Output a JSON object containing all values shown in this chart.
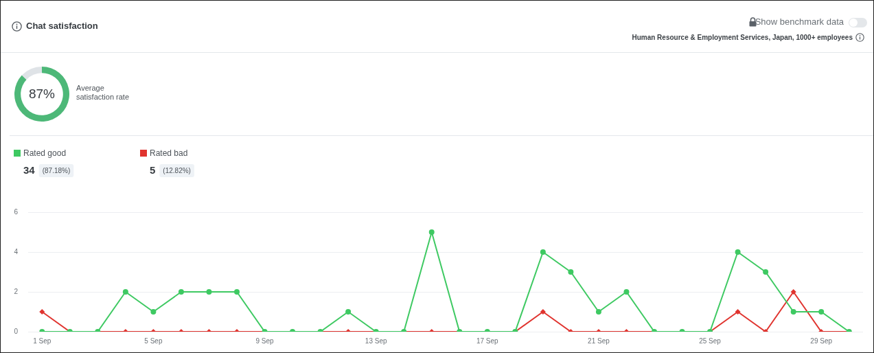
{
  "chart_data": [
    {
      "type": "donut",
      "title": "Chat satisfaction",
      "categories": [
        null,
        null
      ],
      "values": [
        87,
        13
      ],
      "colors": [
        "#4db878",
        "#dfe3e7"
      ],
      "value_labels": [
        "87%",
        null
      ],
      "annotations": [
        "Average satisfaction rate",
        "Show benchmark data",
        "Human Resource & Employment Services, Japan, 1000+ employees"
      ]
    },
    {
      "type": "line",
      "categories": [
        "1 Sep",
        null,
        null,
        null,
        "5 Sep",
        null,
        null,
        null,
        "9 Sep",
        null,
        null,
        null,
        "13 Sep",
        null,
        null,
        null,
        "17 Sep",
        null,
        null,
        null,
        "21 Sep",
        null,
        null,
        null,
        "25 Sep",
        null,
        null,
        null,
        "29 Sep",
        null
      ],
      "series": [
        {
          "name": "Rated good",
          "color": "#3ec962",
          "marker": "circle",
          "values": [
            0,
            0,
            0,
            2,
            1,
            2,
            2,
            2,
            0,
            0,
            0,
            1,
            0,
            0,
            5,
            0,
            0,
            0,
            4,
            3,
            1,
            2,
            0,
            0,
            0,
            4,
            3,
            1,
            1,
            0
          ]
        },
        {
          "name": "Rated bad",
          "color": "#e0342f",
          "marker": "diamond",
          "values": [
            1,
            0,
            0,
            0,
            0,
            0,
            0,
            0,
            0,
            0,
            0,
            0,
            0,
            0,
            0,
            0,
            0,
            0,
            1,
            0,
            0,
            0,
            0,
            0,
            0,
            1,
            0,
            2,
            0,
            0
          ]
        }
      ],
      "ylim": [
        0,
        6
      ],
      "yticks": [
        0,
        2,
        4,
        6
      ],
      "grid": "y",
      "legend": "top left",
      "annotations": [
        "34",
        "(87.18%)",
        "5",
        "(12.82%)"
      ]
    }
  ]
}
